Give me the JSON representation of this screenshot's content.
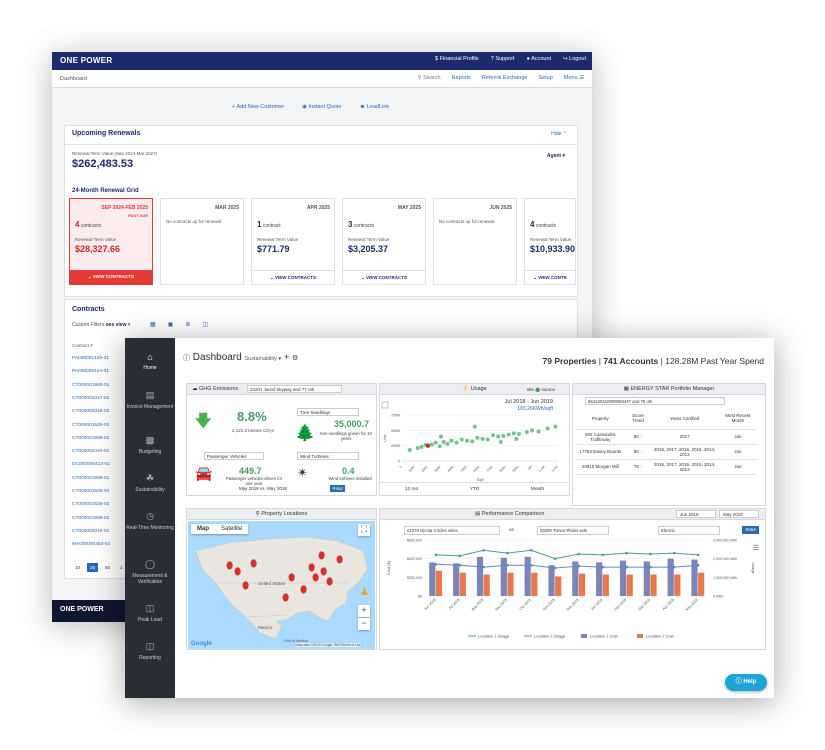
{
  "back": {
    "brand": "ONE POWER",
    "top_nav": [
      "$ Financial Profile",
      "? Support",
      "Account",
      "Logout"
    ],
    "breadcrumb": "Dashboard",
    "sub_nav": {
      "search": "Search",
      "items": [
        "Reports",
        "Referral Exchange",
        "Setup",
        "Menu"
      ]
    },
    "actions": [
      "Add New Customer",
      "Instant Quote",
      "LeadLink"
    ],
    "renewals": {
      "title": "Upcoming Renewals",
      "hide": "Hide",
      "term_label": "Renewal Term Value (Sep 2024-Mar 2027)",
      "term_value": "$262,483.53",
      "agent": "Agent",
      "grid_title": "24-Month Renewal Grid",
      "months": [
        {
          "label": "SEP 2024-FEB 2025",
          "badge": "PAST DUE",
          "count": "4",
          "count_label": "contracts",
          "value_label": "Renewal Term Value",
          "value": "$28,327.66",
          "button": "VIEW CONTRACTS"
        },
        {
          "label": "MAR 2025",
          "none": "No contracts up for renewal."
        },
        {
          "label": "APR 2025",
          "count": "1",
          "count_label": "contract",
          "value_label": "Renewal Term Value",
          "value": "$771.79",
          "button": "VIEW CONTRACTS"
        },
        {
          "label": "MAY 2025",
          "count": "3",
          "count_label": "contracts",
          "value_label": "Renewal Term Value",
          "value": "$3,205.37",
          "button": "VIEW CONTRACTS"
        },
        {
          "label": "JUN 2025",
          "none": "No contracts up for renewal."
        },
        {
          "label": "",
          "count": "4",
          "count_label": "contracts",
          "value_label": "Renewal Term Value",
          "value": "$10,933.90",
          "button": "VIEW CONTR"
        }
      ]
    },
    "contracts": {
      "title": "Contracts",
      "filter_label": "Custom Filters",
      "filter_value": "oes view",
      "col": "Contract #",
      "rows": [
        "PA000001428-01",
        "PA000000424-01",
        "CT000001980-01",
        "CT000002317-02",
        "CT000002318-02",
        "CT000001525-03",
        "CT000001989-02",
        "CT000002440-01",
        "DC000000413-02",
        "CT000001989-01",
        "CT000001525-04",
        "CT000001525-02",
        "CT000001989-02",
        "CT000002018-01",
        "MA000000453-03"
      ],
      "pager": [
        "10",
        "25",
        "50",
        "1"
      ]
    },
    "footer": "ONE POWER"
  },
  "front": {
    "sidebar": [
      {
        "icon": "home-icon",
        "label": "Home"
      },
      {
        "icon": "invoice-icon",
        "label": "Invoice Management"
      },
      {
        "icon": "budget-icon",
        "label": "Budgeting"
      },
      {
        "icon": "leaf-icon",
        "label": "Sustainability"
      },
      {
        "icon": "clock-icon",
        "label": "Real-Time Monitoring"
      },
      {
        "icon": "gauge-icon",
        "label": "Measurement & Verification"
      },
      {
        "icon": "load-icon",
        "label": "Peak Load"
      },
      {
        "icon": "report-icon",
        "label": "Reporting"
      }
    ],
    "title": "Dashboard",
    "view": "Sustainability",
    "stats": {
      "properties": "79 Properties",
      "accounts": "741 Accounts",
      "spend": "128.28M Past Year Spend"
    },
    "ghg": {
      "title": "GHG Emissions",
      "select": "22201 Jarod Skyway and 77 oth",
      "pct": "8.8%",
      "tonnes": "2,121.3 tonnes CO₂e",
      "tree_select": "Tree Seedlings",
      "tree_value": "35,000.7",
      "tree_text": "tree seedlings grown for 10 years",
      "car_select": "Passenger Vehicles",
      "car_value": "449.7",
      "car_text": "Passenger vehicles driven for one year",
      "wind_select": "Wind Turbines",
      "wind_value": "0.4",
      "wind_text": "Wind turbines installed",
      "from": "May 2018",
      "vs": "vs.",
      "to": "May 2018",
      "go": "Retur"
    },
    "usage": {
      "title": "Usage",
      "toggle": "site",
      "source": "source",
      "date": "Jul 2018 - Jun 2019",
      "kwh": "165.26KWh/sqft",
      "ylabel": "Use",
      "xlabel": "Sqft",
      "y_ticks": [
        "750M",
        "500M",
        "250M",
        "0"
      ],
      "x_ticks": [
        "0",
        "100K",
        "200K",
        "300K",
        "400K",
        "500K",
        "600K",
        "700K",
        "800K",
        "900K",
        "1M",
        "1.1M",
        "1.2M"
      ],
      "tabs": [
        "12 mo",
        "YTD",
        "Month"
      ]
    },
    "energy": {
      "title": "ENERGY STAR Portfolio Manager",
      "select": "564130410009093447 and 76 oth",
      "headers": [
        "Property",
        "Score Trend",
        "Years Certified",
        "Most Recent Month"
      ],
      "rows": [
        {
          "property": "005 Cassandra Trafficway",
          "score": "80",
          "years": "2017",
          "month": "Jan"
        },
        {
          "property": "17763 Dasey Bounts",
          "score": "80",
          "years": "2016, 2017, 2016, 2015, 2014, 2013",
          "month": "Jun"
        },
        {
          "property": "20915 Morgan Mill",
          "score": "78",
          "years": "2016, 2017, 2016, 2015, 2014, 2013",
          "month": "Jun"
        },
        {
          "property": "",
          "score": "",
          "years": "",
          "month": ""
        }
      ]
    },
    "locations": {
      "title": "Property Locations",
      "map": "Map",
      "satellite": "Satellite",
      "labels": [
        "United States",
        "Mexico",
        "Gulf of Mexico"
      ],
      "attribution": "Map data ©2019 Google, INEGI",
      "terms": "Terms of Use",
      "google": "Google"
    },
    "perf": {
      "title": "Performance Comparison",
      "from": "Jun 2018",
      "to": "May 2019",
      "loc1": "01079 Dicota Circles selec",
      "vs": "vs",
      "loc2": "03290 Trevor Plains sele",
      "type": "Electric",
      "go": "Retur",
      "y_left_ticks": [
        "$600,000",
        "$400,000",
        "$200,000",
        "$0"
      ],
      "y_right_ticks": [
        "3,000,000 kWh",
        "2,000,000 kWh",
        "1,000,000 kWh",
        "0 kWh"
      ],
      "ylabel": "Cost ($)",
      "ylabel_right": "Usage",
      "legend": [
        "Location 1 Usage",
        "Location 2 Usage",
        "Location 1 Cost",
        "Location 2 Cost"
      ],
      "help": "Help"
    }
  },
  "chart_data": [
    {
      "type": "scatter",
      "xlabel": "Sqft",
      "ylabel": "Use",
      "x_ticks": [
        "0",
        "100K",
        "200K",
        "300K",
        "400K",
        "500K",
        "600K",
        "700K",
        "800K",
        "900K",
        "1M",
        "1.1M",
        "1.2M"
      ],
      "y_ticks": [
        "750M",
        "500M",
        "250M",
        "0"
      ],
      "xlim": [
        0,
        1200000
      ],
      "ylim": [
        0,
        750000000
      ],
      "points": [
        [
          60000,
          180000000
        ],
        [
          120000,
          210000000
        ],
        [
          150000,
          230000000
        ],
        [
          180000,
          260000000
        ],
        [
          230000,
          270000000
        ],
        [
          260000,
          300000000
        ],
        [
          290000,
          240000000
        ],
        [
          320000,
          310000000
        ],
        [
          350000,
          280000000
        ],
        [
          380000,
          330000000
        ],
        [
          420000,
          300000000
        ],
        [
          460000,
          350000000
        ],
        [
          500000,
          330000000
        ],
        [
          540000,
          320000000
        ],
        [
          580000,
          380000000
        ],
        [
          620000,
          360000000
        ],
        [
          660000,
          350000000
        ],
        [
          700000,
          420000000
        ],
        [
          740000,
          400000000
        ],
        [
          780000,
          410000000
        ],
        [
          820000,
          430000000
        ],
        [
          860000,
          450000000
        ],
        [
          900000,
          440000000
        ],
        [
          960000,
          470000000
        ],
        [
          1000000,
          500000000
        ],
        [
          1050000,
          480000000
        ],
        [
          1120000,
          530000000
        ],
        [
          1180000,
          560000000
        ],
        [
          300000,
          400000000
        ],
        [
          560000,
          560000000
        ],
        [
          880000,
          360000000
        ],
        [
          760000,
          310000000
        ]
      ],
      "highlight": [
        [
          200000,
          250000000
        ]
      ]
    },
    {
      "type": "bar",
      "categories": [
        "Jun 2018",
        "Jul 2018",
        "Aug 2018",
        "Sep 2018",
        "Oct 2018",
        "Nov 2018",
        "Dec 2018",
        "Jan 2019",
        "Feb 2019",
        "Mar 2019",
        "Apr 2019",
        "May 2019"
      ],
      "series": [
        {
          "name": "Location 1 Cost",
          "values": [
            360000,
            350000,
            420000,
            410000,
            420000,
            330000,
            370000,
            360000,
            380000,
            370000,
            400000,
            390000
          ]
        },
        {
          "name": "Location 2 Cost",
          "values": [
            270000,
            250000,
            230000,
            250000,
            250000,
            210000,
            240000,
            230000,
            230000,
            230000,
            230000,
            250000
          ]
        }
      ],
      "lines": [
        {
          "name": "Location 1 Usage",
          "values": [
            2200000,
            2150000,
            2450000,
            2300000,
            2450000,
            2000000,
            2250000,
            2200000,
            2300000,
            2250000,
            2300000,
            2200000
          ]
        },
        {
          "name": "Location 2 Usage",
          "values": [
            1700000,
            1650000,
            1550000,
            1650000,
            1650000,
            1500000,
            1600000,
            1550000,
            1550000,
            1550000,
            1550000,
            1650000
          ]
        }
      ],
      "ylim": [
        0,
        600000
      ],
      "ylim_right": [
        0,
        3000000
      ]
    }
  ],
  "colors": {
    "navy": "#1e2a6e",
    "link": "#2b6bb3",
    "alert": "#e53935",
    "green": "#4a9b6a",
    "l1cost": "#7b85b8",
    "l2cost": "#e8784e",
    "l1use": "#4a9b9a",
    "l2use": "#5b8cc4",
    "marker": "#d32f2f"
  }
}
